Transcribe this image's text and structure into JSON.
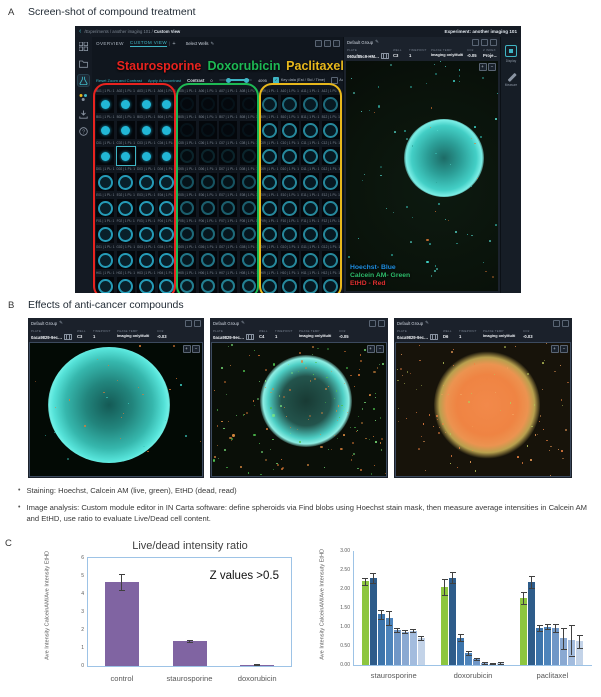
{
  "panelA": {
    "letter": "A",
    "title": "Screen-shot of compound treatment",
    "app": {
      "breadcrumb_prefix": "/Experiments / another imaging 101 / ",
      "breadcrumb_current": "Custom View",
      "experiment_label": "Experiment: another imaging 101",
      "tabs": [
        {
          "label": "OVERVIEW",
          "active": false
        },
        {
          "label": "CUSTOM VIEW",
          "active": true
        }
      ],
      "add_tab_label": "+",
      "select_wells_label": "Select Wells",
      "links": [
        "Reset Zoom and Contrast",
        "Apply Autocontrast"
      ],
      "contrast": {
        "label": "Contrast",
        "min": "0",
        "max": "4095"
      },
      "checkboxes": [
        {
          "label": "Key data (Est / Std / Time)",
          "checked": true
        },
        {
          "label": "Auto",
          "checked": false
        }
      ],
      "compounds": [
        {
          "name": "Staurosporine",
          "color": "#e8231f"
        },
        {
          "name": "Doxorubicin",
          "color": "#1db954"
        },
        {
          "name": "Paclitaxel",
          "color": "#e8b81c"
        }
      ],
      "plate": {
        "rows": [
          "A",
          "B",
          "C",
          "D",
          "E",
          "F",
          "G",
          "H"
        ],
        "cols": 12,
        "well_label_suffix": " | 1 PL: 1",
        "selected_well": "C2"
      },
      "detail": {
        "group_label": "Default Group",
        "fields": [
          {
            "label": "Plate",
            "value": "060af85c9-HM…",
            "copy": true
          },
          {
            "label": "Well",
            "value": "C3"
          },
          {
            "label": "Timepoint",
            "value": "1"
          },
          {
            "label": "Phase Temp",
            "value": "Imaging onlyMulti"
          },
          {
            "label": "CO2",
            "value": "-0.05"
          },
          {
            "label": "Z index",
            "value": "Proje…"
          }
        ],
        "zoom_in": "+",
        "zoom_out": "−",
        "legend": [
          {
            "text": "Hoechst- Blue",
            "color": "#1f8fe0"
          },
          {
            "text": "Calcein AM- Green",
            "color": "#2ebd6b"
          },
          {
            "text": "EtHD - Red",
            "color": "#e03030"
          }
        ]
      },
      "tools": [
        {
          "label": "Display"
        },
        {
          "label": "Measure"
        }
      ]
    }
  },
  "panelB": {
    "letter": "B",
    "title": "Effects of anti-cancer compounds",
    "field_labels": {
      "plate": "Plate",
      "well": "Well",
      "timepoint": "Timepoint",
      "phase": "Phase Temp",
      "co2": "CO2"
    },
    "viewers": [
      {
        "group": "Default Group",
        "plate": "0aca9829-9ec…",
        "well": "C3",
        "timepoint": "1",
        "phase": "Imaging onlyMulti",
        "co2": "-0.03"
      },
      {
        "group": "Default Group",
        "plate": "0aca9829-9ec…",
        "well": "C4",
        "timepoint": "1",
        "phase": "Imaging onlyMulti",
        "co2": "-0.05"
      },
      {
        "group": "Default Group",
        "plate": "0aca9829-9ec…",
        "well": "D6",
        "timepoint": "1",
        "phase": "Imaging onlyMulti",
        "co2": "-0.03"
      }
    ]
  },
  "bullets": [
    "Staining: Hoechst, Calcein AM (live, green), EtHD (dead, read)",
    "Image analysis: Custom module editor in IN Carta software: define spheroids via Find blobs using Hoechst stain mask, then measure average intensities in Calcein AM and EtHD, use ratio to evaluate Live/Dead cell content."
  ],
  "panelC": {
    "letter": "C"
  },
  "chart_data": [
    {
      "type": "bar",
      "title": "Live/dead intensity ratio",
      "ylabel": "Ave Intensity CalceinAM/Ave Intensity EtHD",
      "categories": [
        "control",
        "staurosporine",
        "doxorubicin"
      ],
      "values": [
        4.65,
        1.4,
        0.07
      ],
      "errors": [
        0.45,
        0.06,
        0.02
      ],
      "annotation": "Z values >0.5",
      "ylim": [
        0,
        6
      ],
      "yticks": [
        "0",
        "1",
        "2",
        "3",
        "4",
        "5",
        "6"
      ],
      "bar_color": "#8064a2",
      "grid": false,
      "legend_position": "none"
    },
    {
      "type": "bar",
      "title": "",
      "ylabel": "Ave Intensity CalceinAM/Ave Intensuty EtHD",
      "categories": [
        "staurosporine",
        "doxorubicin",
        "paclitaxel"
      ],
      "ylim": [
        0,
        3
      ],
      "yticks": [
        "0.00",
        "0.50",
        "1.00",
        "1.50",
        "2.00",
        "2.50",
        "3.00"
      ],
      "grid": false,
      "legend_position": "none",
      "series": [
        {
          "color": "#8dc63f",
          "values": [
            2.2,
            2.05,
            1.76
          ],
          "errors": [
            0.1,
            0.22,
            0.15
          ]
        },
        {
          "color": "#2e5c8a",
          "values": [
            2.28,
            2.3,
            2.18
          ],
          "errors": [
            0.13,
            0.15,
            0.15
          ]
        },
        {
          "color": "#3c74ab",
          "values": [
            1.33,
            0.72,
            0.97
          ],
          "errors": [
            0.13,
            0.1,
            0.08
          ]
        },
        {
          "color": "#4d84bb",
          "values": [
            1.23,
            0.32,
            1.01
          ],
          "errors": [
            0.18,
            0.05,
            0.06
          ]
        },
        {
          "color": "#7097c7",
          "values": [
            0.92,
            0.15,
            0.98
          ],
          "errors": [
            0.06,
            0.03,
            0.1
          ]
        },
        {
          "color": "#8aa9d2",
          "values": [
            0.88,
            0.05,
            0.7
          ],
          "errors": [
            0.04,
            0.02,
            0.28
          ]
        },
        {
          "color": "#a3bcde",
          "values": [
            0.9,
            0.03,
            0.65
          ],
          "errors": [
            0.04,
            0.01,
            0.4
          ]
        },
        {
          "color": "#c3d3e8",
          "values": [
            0.72,
            0.05,
            0.63
          ],
          "errors": [
            0.05,
            0.02,
            0.17
          ]
        }
      ]
    }
  ]
}
